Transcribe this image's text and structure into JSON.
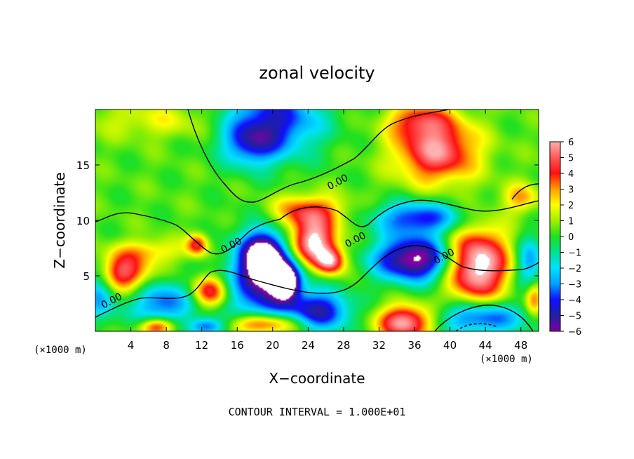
{
  "chart_data": {
    "type": "heatmap",
    "title": "zonal velocity",
    "xlabel": "X−coordinate",
    "ylabel": "Z−coordinate",
    "x_unit_left": "(×1000 m)",
    "x_unit_right": "(×1000 m)",
    "xlim": [
      0,
      50
    ],
    "ylim": [
      0,
      20
    ],
    "x_ticks": [
      4,
      8,
      12,
      16,
      20,
      24,
      28,
      32,
      36,
      40,
      44,
      48
    ],
    "y_ticks": [
      5,
      10,
      15
    ],
    "colorbar": {
      "ticks": [
        "6",
        "5",
        "4",
        "3",
        "2",
        "1",
        "0",
        "−1",
        "−2",
        "−3",
        "−4",
        "−5",
        "−6"
      ],
      "range": [
        -6,
        6
      ]
    },
    "contour_labels": [
      {
        "text": "0.00",
        "x": 27.5,
        "y": 13.2
      },
      {
        "text": "0.00",
        "x": 15.5,
        "y": 7.5
      },
      {
        "text": "0.00",
        "x": 29.5,
        "y": 8.0
      },
      {
        "text": "0.00",
        "x": 39.5,
        "y": 6.5
      },
      {
        "text": "0.00",
        "x": 2.0,
        "y": 2.5
      }
    ],
    "footnote": "CONTOUR INTERVAL = 1.000E+01",
    "blobs": [
      {
        "x": 20.0,
        "y": 19.0,
        "rx": 5.5,
        "ry": 3.2,
        "v": -4.8
      },
      {
        "x": 17.5,
        "y": 16.8,
        "rx": 3.0,
        "ry": 2.0,
        "v": -3.0
      },
      {
        "x": 38.5,
        "y": 16.3,
        "rx": 4.5,
        "ry": 2.8,
        "v": 5.3
      },
      {
        "x": 36.5,
        "y": 19.0,
        "rx": 3.5,
        "ry": 1.5,
        "v": 3.0
      },
      {
        "x": 7.0,
        "y": 19.0,
        "rx": 8.0,
        "ry": 1.6,
        "v": 1.4
      },
      {
        "x": 24.0,
        "y": 10.8,
        "rx": 4.0,
        "ry": 1.5,
        "v": 3.8
      },
      {
        "x": 24.5,
        "y": 8.0,
        "rx": 2.6,
        "ry": 2.0,
        "v": 6.5
      },
      {
        "x": 26.5,
        "y": 6.3,
        "rx": 1.6,
        "ry": 1.2,
        "v": 5.0
      },
      {
        "x": 19.0,
        "y": 6.5,
        "rx": 2.2,
        "ry": 2.2,
        "v": -8.0
      },
      {
        "x": 21.5,
        "y": 4.5,
        "rx": 1.5,
        "ry": 1.5,
        "v": -7.0
      },
      {
        "x": 19.0,
        "y": 4.0,
        "rx": 4.5,
        "ry": 4.5,
        "v": -4.5
      },
      {
        "x": 25.5,
        "y": 1.8,
        "rx": 3.5,
        "ry": 1.8,
        "v": -4.8
      },
      {
        "x": 13.0,
        "y": 3.6,
        "rx": 2.0,
        "ry": 1.4,
        "v": 4.5
      },
      {
        "x": 7.5,
        "y": 2.5,
        "rx": 3.5,
        "ry": 2.0,
        "v": -4.0
      },
      {
        "x": 3.0,
        "y": 5.2,
        "rx": 3.0,
        "ry": 1.7,
        "v": 5.0
      },
      {
        "x": 6.0,
        "y": 7.2,
        "rx": 4.0,
        "ry": 1.1,
        "v": 2.0
      },
      {
        "x": 11.5,
        "y": 7.8,
        "rx": 1.2,
        "ry": 1.0,
        "v": 4.0
      },
      {
        "x": 0.5,
        "y": 3.5,
        "rx": 2.0,
        "ry": 2.5,
        "v": -3.5
      },
      {
        "x": 36.0,
        "y": 6.5,
        "rx": 4.5,
        "ry": 2.0,
        "v": -7.0
      },
      {
        "x": 36.5,
        "y": 10.2,
        "rx": 5.0,
        "ry": 1.5,
        "v": -4.5
      },
      {
        "x": 43.0,
        "y": 6.0,
        "rx": 3.5,
        "ry": 3.2,
        "v": 7.0
      },
      {
        "x": 43.5,
        "y": 1.2,
        "rx": 5.0,
        "ry": 1.5,
        "v": -4.5
      },
      {
        "x": 35.0,
        "y": 0.8,
        "rx": 3.0,
        "ry": 1.5,
        "v": 6.0
      },
      {
        "x": 19.0,
        "y": 0.6,
        "rx": 4.0,
        "ry": 1.0,
        "v": 5.5
      },
      {
        "x": 7.0,
        "y": 0.4,
        "rx": 2.0,
        "ry": 0.8,
        "v": 4.5
      },
      {
        "x": 12.5,
        "y": 0.4,
        "rx": 2.0,
        "ry": 0.8,
        "v": -4.0
      },
      {
        "x": 48.0,
        "y": 12.0,
        "rx": 2.0,
        "ry": 1.3,
        "v": 2.5
      },
      {
        "x": 49.0,
        "y": 6.0,
        "rx": 1.5,
        "ry": 2.5,
        "v": -3.5
      },
      {
        "x": 49.5,
        "y": 3.0,
        "rx": 1.0,
        "ry": 1.5,
        "v": 3.5
      }
    ]
  }
}
